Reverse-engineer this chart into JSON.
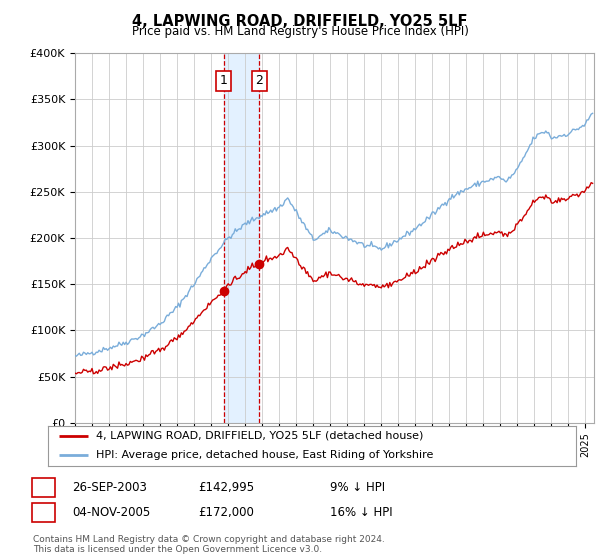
{
  "title": "4, LAPWING ROAD, DRIFFIELD, YO25 5LF",
  "subtitle": "Price paid vs. HM Land Registry's House Price Index (HPI)",
  "ylabel_ticks": [
    "£0",
    "£50K",
    "£100K",
    "£150K",
    "£200K",
    "£250K",
    "£300K",
    "£350K",
    "£400K"
  ],
  "ytick_values": [
    0,
    50000,
    100000,
    150000,
    200000,
    250000,
    300000,
    350000,
    400000
  ],
  "ylim": [
    0,
    400000
  ],
  "xlim_start": 1995.0,
  "xlim_end": 2025.5,
  "sale1_date": 2003.73,
  "sale1_price": 142995,
  "sale1_label": "1",
  "sale2_date": 2005.84,
  "sale2_price": 172000,
  "sale2_label": "2",
  "red_color": "#cc0000",
  "blue_color": "#7aadda",
  "shade_color": "#ddeeff",
  "legend_line1": "4, LAPWING ROAD, DRIFFIELD, YO25 5LF (detached house)",
  "legend_line2": "HPI: Average price, detached house, East Riding of Yorkshire",
  "table_row1": [
    "1",
    "26-SEP-2003",
    "£142,995",
    "9% ↓ HPI"
  ],
  "table_row2": [
    "2",
    "04-NOV-2005",
    "£172,000",
    "16% ↓ HPI"
  ],
  "footnote": "Contains HM Land Registry data © Crown copyright and database right 2024.\nThis data is licensed under the Open Government Licence v3.0.",
  "background_color": "#ffffff",
  "grid_color": "#cccccc"
}
